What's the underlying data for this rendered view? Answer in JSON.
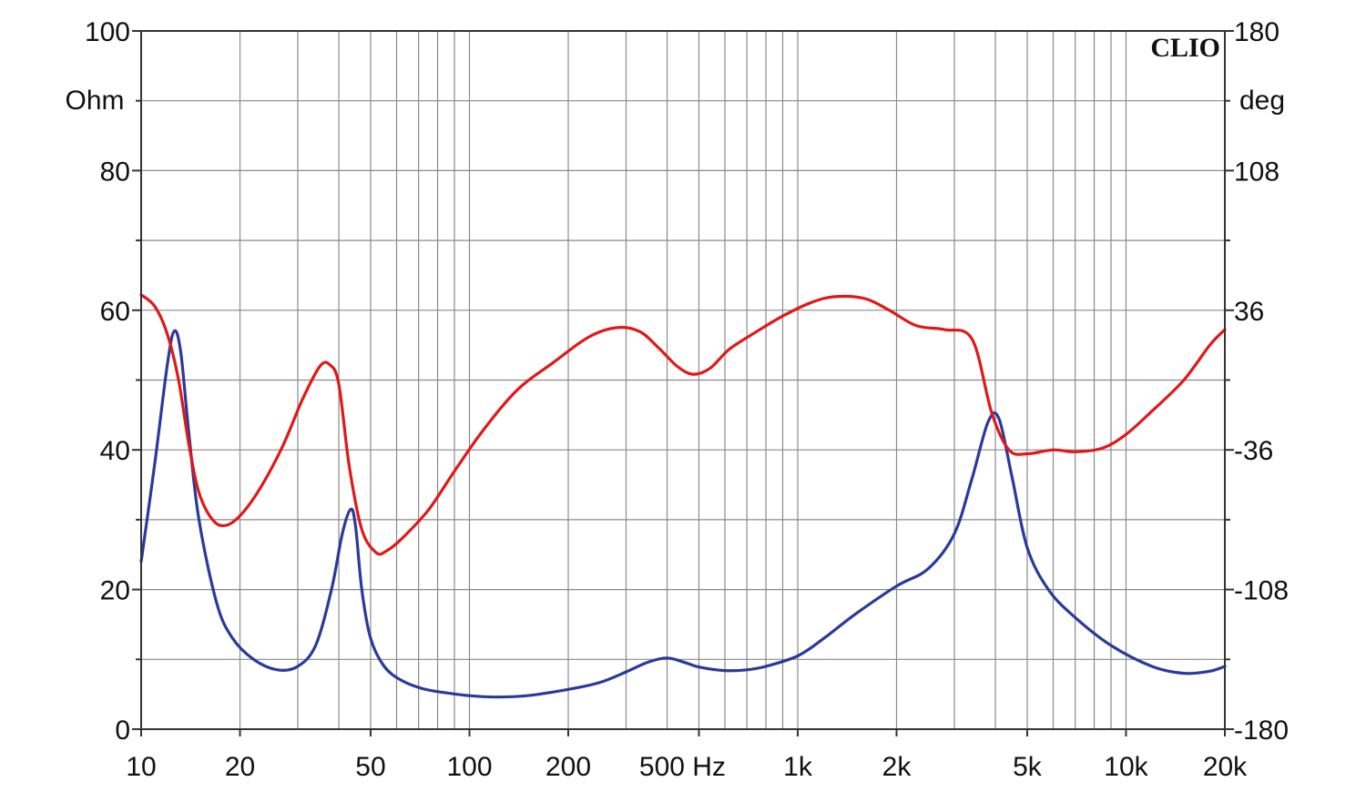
{
  "brand": "CLIO",
  "colors": {
    "impedance": "#2a3a9a",
    "phase": "#e01818",
    "grid": "#8a8a8a",
    "frame": "#333333"
  },
  "chart_data": {
    "type": "line",
    "x_scale": "log",
    "xlim": [
      10,
      20000
    ],
    "ylim_left": [
      0,
      100
    ],
    "ylim_right": [
      -180,
      180
    ],
    "grid": true,
    "x_tick_labels": [
      "10",
      "20",
      "50",
      "100",
      "200",
      "500 Hz",
      "1k",
      "2k",
      "5k",
      "10k",
      "20k"
    ],
    "x_tick_values": [
      10,
      20,
      50,
      100,
      200,
      500,
      1000,
      2000,
      5000,
      10000,
      20000
    ],
    "left_axis": {
      "unit_label": "Ohm",
      "ticks": [
        {
          "v": 100,
          "label": "100"
        },
        {
          "v": 80,
          "label": "80"
        },
        {
          "v": 60,
          "label": "60"
        },
        {
          "v": 40,
          "label": "40"
        },
        {
          "v": 20,
          "label": "20"
        },
        {
          "v": 0,
          "label": "0"
        }
      ]
    },
    "right_axis": {
      "unit_label": "deg",
      "ticks": [
        {
          "v": 180,
          "label": "180"
        },
        {
          "v": 108,
          "label": "108"
        },
        {
          "v": 36,
          "label": "36"
        },
        {
          "v": -36,
          "label": "-36"
        },
        {
          "v": -108,
          "label": "-108"
        },
        {
          "v": -180,
          "label": "-180"
        }
      ]
    },
    "series": [
      {
        "key": "impedance",
        "axis": "left",
        "x": [
          10,
          11,
          12,
          12.6,
          13.2,
          14,
          15,
          17,
          19,
          22,
          26,
          30,
          34,
          38,
          41,
          43.5,
          45,
          47,
          50,
          55,
          62,
          72,
          85,
          100,
          120,
          150,
          200,
          250,
          300,
          350,
          400,
          450,
          500,
          600,
          700,
          800,
          1000,
          1200,
          1500,
          2000,
          2500,
          3000,
          3400,
          3800,
          4100,
          4500,
          5000,
          5800,
          7000,
          9000,
          12000,
          15000,
          18000,
          20000
        ],
        "y": [
          24,
          38,
          52,
          57,
          54,
          42,
          30,
          18,
          13,
          10,
          8.5,
          9,
          12,
          20,
          28,
          31.5,
          29,
          20,
          13,
          9,
          7,
          5.8,
          5.2,
          4.8,
          4.6,
          4.8,
          5.7,
          6.7,
          8.2,
          9.6,
          10.2,
          9.6,
          8.9,
          8.4,
          8.5,
          9,
          10.5,
          13,
          16.5,
          20.5,
          23,
          28,
          36,
          44,
          44.5,
          36,
          26,
          20,
          16,
          12,
          9,
          8,
          8.3,
          9
        ]
      },
      {
        "key": "phase",
        "axis": "right",
        "x": [
          10,
          11,
          12,
          13,
          14,
          15,
          16.5,
          18,
          20,
          23,
          27,
          31,
          35,
          37.5,
          40,
          43,
          47,
          52,
          56,
          62,
          75,
          90,
          110,
          140,
          180,
          230,
          280,
          330,
          380,
          430,
          480,
          540,
          620,
          750,
          900,
          1100,
          1300,
          1600,
          1900,
          2300,
          2800,
          3400,
          3900,
          4400,
          5000,
          6000,
          7000,
          8500,
          10000,
          12000,
          15000,
          18000,
          20000
        ],
        "y": [
          44,
          38,
          24,
          0,
          -34,
          -58,
          -72,
          -75,
          -70,
          -56,
          -34,
          -10,
          7,
          8,
          -2,
          -44,
          -77,
          -89,
          -88,
          -82,
          -67,
          -47,
          -26,
          -5,
          9,
          22,
          27,
          25,
          16,
          7,
          3,
          6,
          16,
          25,
          33,
          40,
          43,
          42,
          36,
          28,
          26,
          21,
          -17,
          -36,
          -38,
          -36,
          -37,
          -35,
          -28,
          -16,
          0,
          18,
          26
        ]
      }
    ]
  }
}
